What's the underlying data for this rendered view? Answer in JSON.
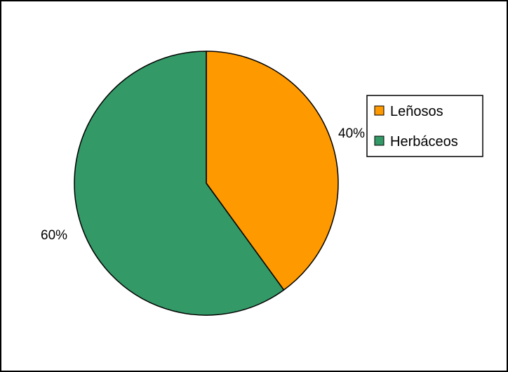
{
  "chart_data": {
    "type": "pie",
    "title": "",
    "start_angle_deg": 0,
    "direction": "clockwise",
    "slices": [
      {
        "label": "Leñosos",
        "value": 40,
        "display": "40%",
        "color": "#FF9900"
      },
      {
        "label": "Herbáceos",
        "value": 60,
        "display": "60%",
        "color": "#339966"
      }
    ],
    "legend": {
      "position": "right",
      "entries": [
        "Leñosos",
        "Herbáceos"
      ]
    },
    "outline_color": "#000000"
  }
}
